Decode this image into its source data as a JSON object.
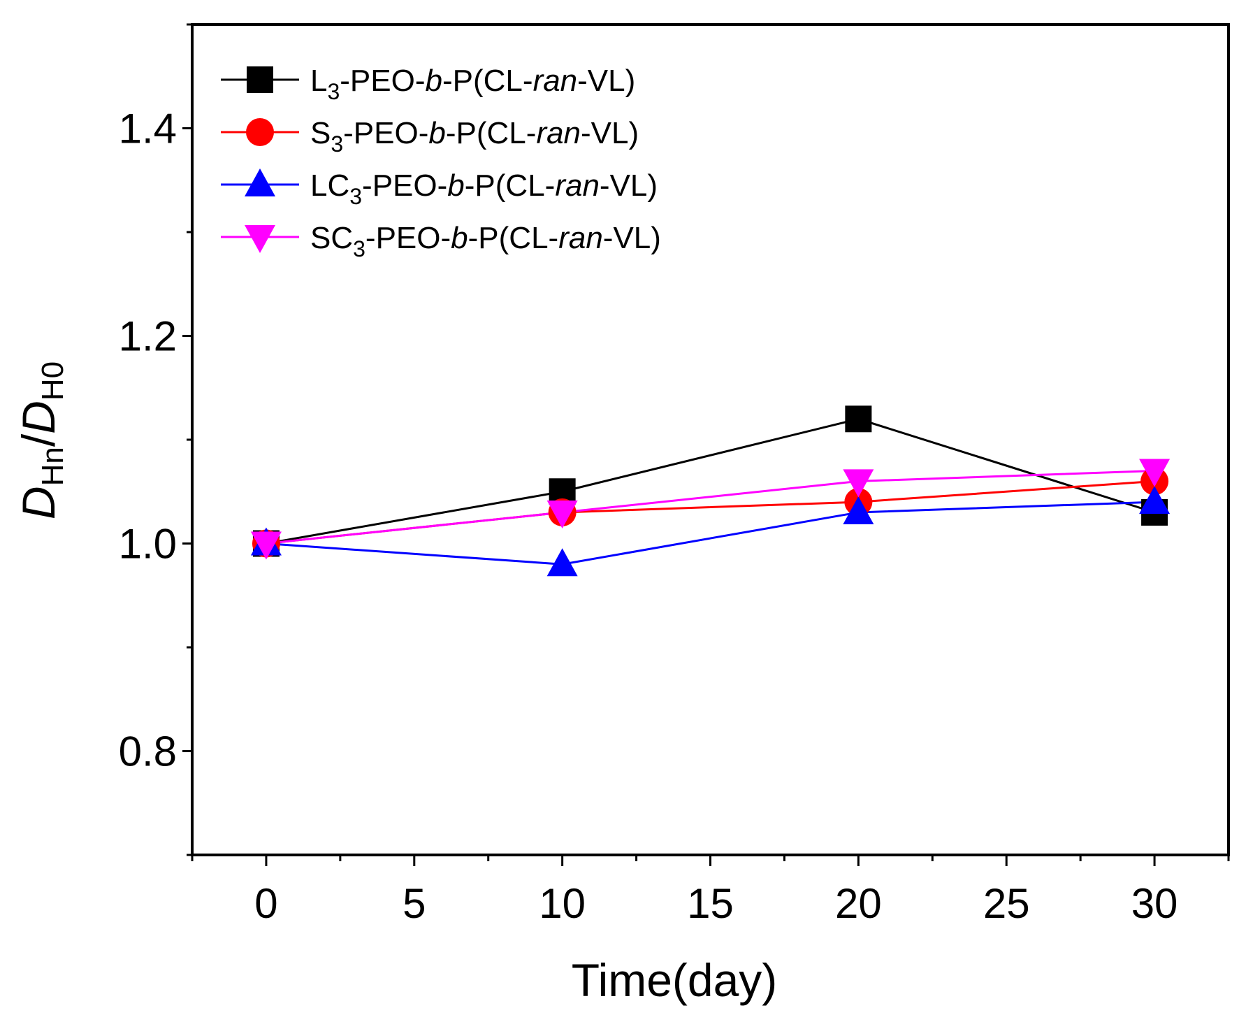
{
  "chart_data": {
    "type": "line",
    "title": "",
    "xlabel": "Time(day)",
    "ylabel": {
      "main1": "D",
      "sub1": "Hn",
      "slash": "/",
      "main2": "D",
      "sub2": "H0"
    },
    "xlim": [
      -2.5,
      32.5
    ],
    "ylim": [
      0.7,
      1.5
    ],
    "xticks": [
      0,
      5,
      10,
      15,
      20,
      25,
      30
    ],
    "yticks": [
      0.8,
      1.0,
      1.2,
      1.4
    ],
    "x": [
      0,
      10,
      20,
      30
    ],
    "series": [
      {
        "name": "L3-PEO-b-P(CL-ran-VL)",
        "label_parts": [
          "L",
          "3",
          "-PEO-",
          "b",
          "-P(CL-",
          "ran",
          "-VL)"
        ],
        "color": "#000000",
        "marker": "square",
        "values": [
          1.0,
          1.05,
          1.12,
          1.03
        ]
      },
      {
        "name": "S3-PEO-b-P(CL-ran-VL)",
        "label_parts": [
          "S",
          "3",
          "-PEO-",
          "b",
          "-P(CL-",
          "ran",
          "-VL)"
        ],
        "color": "#ff0000",
        "marker": "circle",
        "values": [
          1.0,
          1.03,
          1.04,
          1.06
        ]
      },
      {
        "name": "LC3-PEO-b-P(CL-ran-VL)",
        "label_parts": [
          "LC",
          "3",
          "-PEO-",
          "b",
          "-P(CL-",
          "ran",
          "-VL)"
        ],
        "color": "#0000ff",
        "marker": "triangle-up",
        "values": [
          1.0,
          0.98,
          1.03,
          1.04
        ]
      },
      {
        "name": "SC3-PEO-b-P(CL-ran-VL)",
        "label_parts": [
          "SC",
          "3",
          "-PEO-",
          "b",
          "-P(CL-",
          "ran",
          "-VL)"
        ],
        "color": "#ff00ff",
        "marker": "triangle-down",
        "values": [
          1.0,
          1.03,
          1.06,
          1.07
        ]
      }
    ],
    "legend": "top-left",
    "grid": false
  }
}
